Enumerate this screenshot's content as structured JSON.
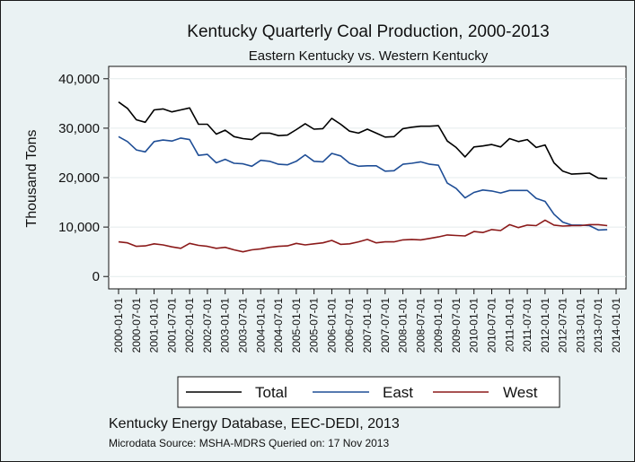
{
  "chart_data": {
    "type": "line",
    "title": "Kentucky Quarterly Coal Production, 2000-2013",
    "subtitle": "Eastern Kentucky vs. Western Kentucky",
    "ylabel": "Thousand Tons",
    "xlabel": "",
    "ylim": [
      -2500,
      42500
    ],
    "yticks": [
      0,
      10000,
      20000,
      30000,
      40000
    ],
    "ytick_labels": [
      "0",
      "10,000",
      "20,000",
      "30,000",
      "40,000"
    ],
    "xtick_labels": [
      "2000-01-01",
      "2000-07-01",
      "2001-01-01",
      "2001-07-01",
      "2002-01-01",
      "2002-07-01",
      "2003-01-01",
      "2003-07-01",
      "2004-01-01",
      "2004-07-01",
      "2005-01-01",
      "2005-07-01",
      "2006-01-01",
      "2006-07-01",
      "2007-01-01",
      "2007-07-01",
      "2008-01-01",
      "2008-07-01",
      "2009-01-01",
      "2009-07-01",
      "2010-01-01",
      "2010-07-01",
      "2011-01-01",
      "2011-07-01",
      "2012-01-01",
      "2012-07-01",
      "2013-01-01",
      "2013-07-01",
      "2014-01-01"
    ],
    "grid": "horizontal",
    "legend_position": "bottom",
    "x": [
      "2000-01-01",
      "2000-04-01",
      "2000-07-01",
      "2000-10-01",
      "2001-01-01",
      "2001-04-01",
      "2001-07-01",
      "2001-10-01",
      "2002-01-01",
      "2002-04-01",
      "2002-07-01",
      "2002-10-01",
      "2003-01-01",
      "2003-04-01",
      "2003-07-01",
      "2003-10-01",
      "2004-01-01",
      "2004-04-01",
      "2004-07-01",
      "2004-10-01",
      "2005-01-01",
      "2005-04-01",
      "2005-07-01",
      "2005-10-01",
      "2006-01-01",
      "2006-04-01",
      "2006-07-01",
      "2006-10-01",
      "2007-01-01",
      "2007-04-01",
      "2007-07-01",
      "2007-10-01",
      "2008-01-01",
      "2008-04-01",
      "2008-07-01",
      "2008-10-01",
      "2009-01-01",
      "2009-04-01",
      "2009-07-01",
      "2009-10-01",
      "2010-01-01",
      "2010-04-01",
      "2010-07-01",
      "2010-10-01",
      "2011-01-01",
      "2011-04-01",
      "2011-07-01",
      "2011-10-01",
      "2012-01-01",
      "2012-04-01",
      "2012-07-01",
      "2012-10-01",
      "2013-01-01",
      "2013-04-01",
      "2013-07-01",
      "2013-10-01"
    ],
    "series": [
      {
        "name": "Total",
        "color": "#000000",
        "values": [
          35300,
          34000,
          31700,
          31200,
          33700,
          33900,
          33300,
          33700,
          34100,
          30800,
          30800,
          28800,
          29600,
          28300,
          27900,
          27700,
          29000,
          29000,
          28500,
          28600,
          29700,
          30900,
          29800,
          29900,
          32000,
          30800,
          29400,
          29000,
          29800,
          29000,
          28200,
          28300,
          29900,
          30200,
          30400,
          30400,
          30500,
          27400,
          26100,
          24200,
          26200,
          26400,
          26700,
          26200,
          27900,
          27300,
          27700,
          26100,
          26600,
          23000,
          21300,
          20700,
          20800,
          20900,
          19900,
          19800
        ]
      },
      {
        "name": "East",
        "color": "#1f4e96",
        "values": [
          28300,
          27300,
          25600,
          25200,
          27300,
          27600,
          27400,
          28000,
          27700,
          24500,
          24700,
          23000,
          23700,
          22900,
          22800,
          22300,
          23500,
          23300,
          22700,
          22600,
          23300,
          24600,
          23300,
          23200,
          24900,
          24400,
          22900,
          22300,
          22400,
          22400,
          21300,
          21400,
          22700,
          22900,
          23200,
          22700,
          22500,
          18900,
          17800,
          15900,
          17000,
          17500,
          17300,
          16900,
          17400,
          17400,
          17400,
          15800,
          15200,
          12600,
          11000,
          10400,
          10400,
          10300,
          9400,
          9500
        ]
      },
      {
        "name": "West",
        "color": "#8b1a1a",
        "values": [
          7000,
          6800,
          6100,
          6200,
          6600,
          6400,
          6000,
          5700,
          6700,
          6300,
          6100,
          5700,
          5900,
          5400,
          5000,
          5400,
          5600,
          5900,
          6100,
          6200,
          6700,
          6400,
          6600,
          6800,
          7300,
          6500,
          6600,
          7000,
          7500,
          6800,
          7000,
          7000,
          7400,
          7500,
          7400,
          7700,
          8000,
          8400,
          8300,
          8200,
          9100,
          8900,
          9500,
          9300,
          10500,
          9900,
          10400,
          10300,
          11400,
          10400,
          10200,
          10300,
          10300,
          10500,
          10500,
          10300
        ]
      }
    ]
  },
  "notes": {
    "source_line": "Kentucky Energy Database, EEC-DEDI, 2013",
    "microdata_line": "Microdata Source: MSHA-MDRS Queried on: 17 Nov 2013"
  }
}
